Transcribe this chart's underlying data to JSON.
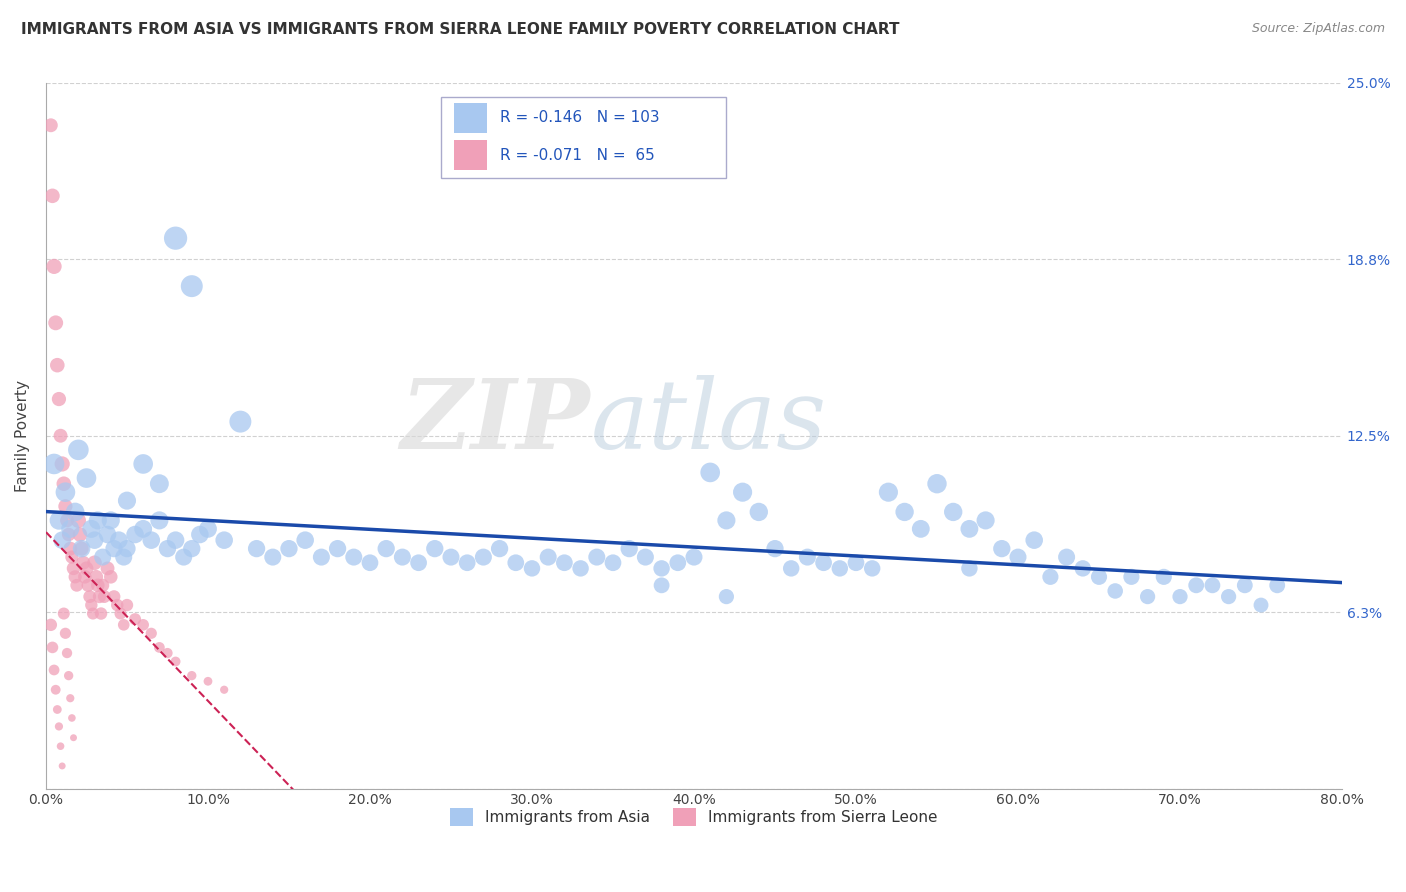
{
  "title": "IMMIGRANTS FROM ASIA VS IMMIGRANTS FROM SIERRA LEONE FAMILY POVERTY CORRELATION CHART",
  "source": "Source: ZipAtlas.com",
  "ylabel": "Family Poverty",
  "xlim": [
    0.0,
    0.8
  ],
  "ylim": [
    0.0,
    0.25
  ],
  "yticks": [
    0.0,
    0.0625,
    0.125,
    0.1875,
    0.25
  ],
  "ytick_labels": [
    "",
    "6.3%",
    "12.5%",
    "18.8%",
    "25.0%"
  ],
  "xticks": [
    0.0,
    0.1,
    0.2,
    0.3,
    0.4,
    0.5,
    0.6,
    0.7,
    0.8
  ],
  "xtick_labels": [
    "0.0%",
    "10.0%",
    "20.0%",
    "30.0%",
    "40.0%",
    "50.0%",
    "60.0%",
    "70.0%",
    "80.0%"
  ],
  "watermark_zip": "ZIP",
  "watermark_atlas": "atlas",
  "legend_R_asia": "-0.146",
  "legend_N_asia": "103",
  "legend_R_sl": "-0.071",
  "legend_N_sl": "65",
  "legend_label_asia": "Immigrants from Asia",
  "legend_label_sl": "Immigrants from Sierra Leone",
  "color_asia": "#a8c8f0",
  "color_sl": "#f0a0b8",
  "line_color_asia": "#1a4aaa",
  "line_color_sl": "#cc2255",
  "background_color": "#ffffff",
  "title_fontsize": 11,
  "asia_x": [
    0.005,
    0.008,
    0.01,
    0.012,
    0.015,
    0.018,
    0.02,
    0.022,
    0.025,
    0.028,
    0.03,
    0.032,
    0.035,
    0.038,
    0.04,
    0.042,
    0.045,
    0.048,
    0.05,
    0.055,
    0.06,
    0.065,
    0.07,
    0.075,
    0.08,
    0.085,
    0.09,
    0.095,
    0.1,
    0.11,
    0.12,
    0.13,
    0.14,
    0.15,
    0.16,
    0.17,
    0.18,
    0.19,
    0.2,
    0.21,
    0.22,
    0.23,
    0.24,
    0.25,
    0.26,
    0.27,
    0.28,
    0.29,
    0.3,
    0.31,
    0.32,
    0.33,
    0.34,
    0.35,
    0.36,
    0.37,
    0.38,
    0.39,
    0.4,
    0.41,
    0.42,
    0.43,
    0.44,
    0.45,
    0.46,
    0.47,
    0.48,
    0.49,
    0.5,
    0.51,
    0.52,
    0.53,
    0.54,
    0.55,
    0.56,
    0.57,
    0.58,
    0.59,
    0.6,
    0.61,
    0.62,
    0.63,
    0.64,
    0.65,
    0.66,
    0.67,
    0.68,
    0.69,
    0.7,
    0.71,
    0.72,
    0.73,
    0.74,
    0.75,
    0.76,
    0.05,
    0.06,
    0.07,
    0.08,
    0.09,
    0.38,
    0.42,
    0.57
  ],
  "asia_y": [
    0.115,
    0.095,
    0.088,
    0.105,
    0.092,
    0.098,
    0.12,
    0.085,
    0.11,
    0.092,
    0.088,
    0.095,
    0.082,
    0.09,
    0.095,
    0.085,
    0.088,
    0.082,
    0.085,
    0.09,
    0.092,
    0.088,
    0.095,
    0.085,
    0.088,
    0.082,
    0.085,
    0.09,
    0.092,
    0.088,
    0.13,
    0.085,
    0.082,
    0.085,
    0.088,
    0.082,
    0.085,
    0.082,
    0.08,
    0.085,
    0.082,
    0.08,
    0.085,
    0.082,
    0.08,
    0.082,
    0.085,
    0.08,
    0.078,
    0.082,
    0.08,
    0.078,
    0.082,
    0.08,
    0.085,
    0.082,
    0.078,
    0.08,
    0.082,
    0.112,
    0.095,
    0.105,
    0.098,
    0.085,
    0.078,
    0.082,
    0.08,
    0.078,
    0.08,
    0.078,
    0.105,
    0.098,
    0.092,
    0.108,
    0.098,
    0.092,
    0.095,
    0.085,
    0.082,
    0.088,
    0.075,
    0.082,
    0.078,
    0.075,
    0.07,
    0.075,
    0.068,
    0.075,
    0.068,
    0.072,
    0.072,
    0.068,
    0.072,
    0.065,
    0.072,
    0.102,
    0.115,
    0.108,
    0.195,
    0.178,
    0.072,
    0.068,
    0.078
  ],
  "sl_x": [
    0.003,
    0.004,
    0.005,
    0.006,
    0.007,
    0.008,
    0.009,
    0.01,
    0.011,
    0.012,
    0.013,
    0.014,
    0.015,
    0.016,
    0.017,
    0.018,
    0.019,
    0.02,
    0.021,
    0.022,
    0.023,
    0.024,
    0.025,
    0.026,
    0.027,
    0.028,
    0.029,
    0.03,
    0.031,
    0.032,
    0.033,
    0.034,
    0.035,
    0.036,
    0.038,
    0.04,
    0.042,
    0.044,
    0.046,
    0.048,
    0.05,
    0.055,
    0.06,
    0.065,
    0.07,
    0.075,
    0.08,
    0.09,
    0.1,
    0.11,
    0.003,
    0.004,
    0.005,
    0.006,
    0.007,
    0.008,
    0.009,
    0.01,
    0.011,
    0.012,
    0.013,
    0.014,
    0.015,
    0.016,
    0.017
  ],
  "sl_y": [
    0.235,
    0.21,
    0.185,
    0.165,
    0.15,
    0.138,
    0.125,
    0.115,
    0.108,
    0.1,
    0.095,
    0.09,
    0.085,
    0.082,
    0.078,
    0.075,
    0.072,
    0.095,
    0.09,
    0.085,
    0.08,
    0.075,
    0.078,
    0.072,
    0.068,
    0.065,
    0.062,
    0.08,
    0.075,
    0.072,
    0.068,
    0.062,
    0.072,
    0.068,
    0.078,
    0.075,
    0.068,
    0.065,
    0.062,
    0.058,
    0.065,
    0.06,
    0.058,
    0.055,
    0.05,
    0.048,
    0.045,
    0.04,
    0.038,
    0.035,
    0.058,
    0.05,
    0.042,
    0.035,
    0.028,
    0.022,
    0.015,
    0.008,
    0.062,
    0.055,
    0.048,
    0.04,
    0.032,
    0.025,
    0.018
  ],
  "asia_sizes": [
    220,
    180,
    160,
    200,
    170,
    180,
    220,
    160,
    200,
    170,
    160,
    170,
    150,
    160,
    170,
    155,
    160,
    150,
    155,
    160,
    165,
    160,
    170,
    155,
    160,
    150,
    155,
    160,
    165,
    160,
    250,
    155,
    150,
    155,
    160,
    150,
    155,
    150,
    145,
    155,
    150,
    145,
    155,
    150,
    145,
    150,
    155,
    145,
    140,
    150,
    145,
    140,
    150,
    145,
    155,
    150,
    140,
    145,
    150,
    200,
    170,
    190,
    175,
    155,
    140,
    150,
    145,
    140,
    145,
    140,
    190,
    175,
    165,
    195,
    175,
    165,
    170,
    155,
    150,
    160,
    135,
    150,
    140,
    135,
    125,
    135,
    120,
    135,
    120,
    130,
    130,
    120,
    130,
    115,
    130,
    170,
    200,
    185,
    280,
    250,
    130,
    120,
    140
  ],
  "sl_sizes": [
    100,
    110,
    120,
    115,
    110,
    105,
    100,
    120,
    110,
    105,
    100,
    95,
    100,
    90,
    95,
    90,
    85,
    120,
    110,
    105,
    100,
    95,
    100,
    90,
    85,
    80,
    75,
    110,
    100,
    95,
    90,
    80,
    90,
    85,
    100,
    95,
    85,
    80,
    75,
    70,
    80,
    75,
    70,
    65,
    60,
    55,
    50,
    45,
    40,
    35,
    80,
    70,
    60,
    50,
    40,
    35,
    30,
    25,
    75,
    65,
    55,
    45,
    35,
    30,
    25
  ]
}
